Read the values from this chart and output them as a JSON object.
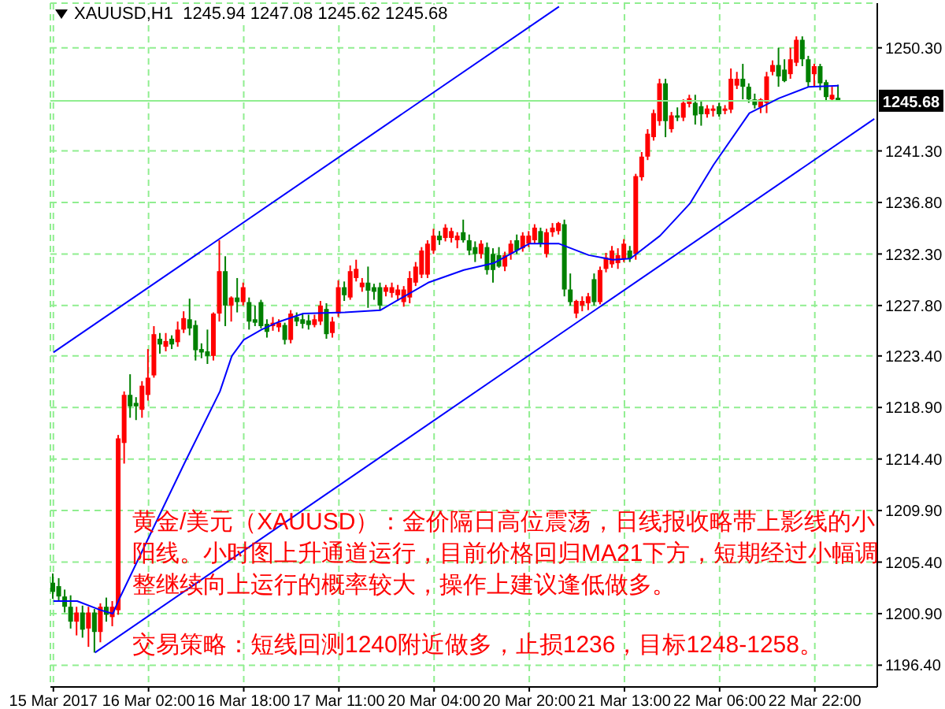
{
  "chart_data": {
    "type": "candlestick",
    "title": "XAUUSD,H1  1245.94 1247.08 1245.62 1245.68",
    "categories": [
      "15 Mar 2017",
      null,
      null,
      null,
      null,
      null,
      null,
      null,
      null,
      null,
      null,
      null,
      null,
      null,
      null,
      null,
      "16 Mar 02:00",
      null,
      null,
      null,
      null,
      null,
      null,
      null,
      null,
      null,
      null,
      null,
      null,
      null,
      null,
      null,
      "16 Mar 18:00",
      null,
      null,
      null,
      null,
      null,
      null,
      null,
      null,
      null,
      null,
      null,
      null,
      null,
      null,
      null,
      "17 Mar 11:00",
      null,
      null,
      null,
      null,
      null,
      null,
      null,
      null,
      null,
      null,
      null,
      null,
      null,
      null,
      null,
      "20 Mar 04:00",
      null,
      null,
      null,
      null,
      null,
      null,
      null,
      null,
      null,
      null,
      null,
      null,
      null,
      null,
      null,
      "20 Mar 20:00",
      null,
      null,
      null,
      null,
      null,
      null,
      null,
      null,
      null,
      null,
      null,
      null,
      null,
      null,
      null,
      "21 Mar 13:00",
      null,
      null,
      null,
      null,
      null,
      null,
      null,
      null,
      null,
      null,
      null,
      null,
      null,
      null,
      null,
      "22 Mar 06:00",
      null,
      null,
      null,
      null,
      null,
      null,
      null,
      null,
      null,
      null,
      null,
      null,
      null,
      null,
      null,
      "22 Mar 22:00",
      null,
      null,
      null,
      null,
      null,
      null,
      null,
      null,
      null,
      null
    ],
    "ohlc": [
      [
        1203.6,
        1204.4,
        1202.2,
        1202.8
      ],
      [
        1203.3,
        1204.0,
        1202.0,
        1202.4
      ],
      [
        1202.4,
        1203.0,
        1201.0,
        1201.5
      ],
      [
        1201.5,
        1202.5,
        1199.6,
        1200.2
      ],
      [
        1200.2,
        1201.5,
        1199.0,
        1201.0
      ],
      [
        1201.0,
        1201.6,
        1198.8,
        1199.5
      ],
      [
        1199.6,
        1201.5,
        1198.0,
        1201.0
      ],
      [
        1201.0,
        1201.3,
        1197.5,
        1199.3
      ],
      [
        1199.3,
        1201.8,
        1198.4,
        1201.5
      ],
      [
        1201.5,
        1202.3,
        1200.2,
        1200.8
      ],
      [
        1200.6,
        1202.0,
        1199.8,
        1201.5
      ],
      [
        1201.2,
        1216.5,
        1200.8,
        1216.2
      ],
      [
        1215.8,
        1220.3,
        1214.0,
        1220.0
      ],
      [
        1220.0,
        1221.8,
        1218.0,
        1219.0
      ],
      [
        1219.3,
        1219.8,
        1217.8,
        1219.0
      ],
      [
        1218.7,
        1221.2,
        1218.0,
        1220.8
      ],
      [
        1220.0,
        1224.0,
        1219.5,
        1221.5
      ],
      [
        1221.7,
        1226.0,
        1221.5,
        1225.3
      ],
      [
        1224.9,
        1225.4,
        1223.6,
        1224.4
      ],
      [
        1224.2,
        1225.4,
        1223.8,
        1224.7
      ],
      [
        1224.9,
        1225.2,
        1224.0,
        1224.4
      ],
      [
        1224.6,
        1226.4,
        1224.2,
        1225.7
      ],
      [
        1225.7,
        1227.3,
        1225.4,
        1226.7
      ],
      [
        1226.6,
        1228.4,
        1225.2,
        1225.8
      ],
      [
        1226.1,
        1226.5,
        1223.0,
        1223.9
      ],
      [
        1224.0,
        1224.5,
        1223.2,
        1223.7
      ],
      [
        1223.8,
        1225.7,
        1222.7,
        1223.4
      ],
      [
        1223.4,
        1227.2,
        1223.0,
        1227.1
      ],
      [
        1227.1,
        1233.5,
        1226.4,
        1230.8
      ],
      [
        1230.8,
        1232.1,
        1226.0,
        1227.8
      ],
      [
        1227.8,
        1228.6,
        1226.4,
        1228.5
      ],
      [
        1228.5,
        1230.2,
        1227.2,
        1228.1
      ],
      [
        1228.1,
        1229.8,
        1227.8,
        1229.4
      ],
      [
        1228.1,
        1228.5,
        1225.7,
        1226.4
      ],
      [
        1226.6,
        1227.8,
        1226.0,
        1226.3
      ],
      [
        1228.1,
        1228.3,
        1225.8,
        1226.0
      ],
      [
        1226.2,
        1226.6,
        1225.0,
        1225.5
      ],
      [
        1226.0,
        1226.8,
        1225.6,
        1226.3
      ],
      [
        1225.9,
        1226.6,
        1225.5,
        1226.3
      ],
      [
        1226.1,
        1226.3,
        1224.4,
        1224.8
      ],
      [
        1224.8,
        1227.4,
        1224.5,
        1227.1
      ],
      [
        1226.8,
        1227.2,
        1226.0,
        1226.4
      ],
      [
        1226.6,
        1227.1,
        1225.8,
        1226.2
      ],
      [
        1226.5,
        1227.0,
        1225.7,
        1226.1
      ],
      [
        1226.1,
        1227.0,
        1225.9,
        1226.6
      ],
      [
        1226.4,
        1228.2,
        1226.1,
        1227.8
      ],
      [
        1227.5,
        1228.0,
        1224.9,
        1225.3
      ],
      [
        1225.4,
        1226.8,
        1225.0,
        1226.4
      ],
      [
        1227.1,
        1230.0,
        1226.8,
        1229.4
      ],
      [
        1229.4,
        1229.9,
        1228.2,
        1228.7
      ],
      [
        1228.5,
        1231.3,
        1228.3,
        1230.8
      ],
      [
        1230.2,
        1231.8,
        1229.9,
        1231.0
      ],
      [
        1229.4,
        1230.2,
        1229.0,
        1229.8
      ],
      [
        1229.8,
        1231.2,
        1227.6,
        1229.1
      ],
      [
        1229.4,
        1229.7,
        1228.3,
        1229.0
      ],
      [
        1229.4,
        1229.8,
        1227.4,
        1227.8
      ],
      [
        1229.0,
        1229.6,
        1228.6,
        1229.4
      ],
      [
        1228.9,
        1229.8,
        1228.5,
        1229.4
      ],
      [
        1228.7,
        1229.6,
        1228.2,
        1229.2
      ],
      [
        1228.1,
        1229.5,
        1227.7,
        1229.2
      ],
      [
        1228.5,
        1230.8,
        1228.0,
        1230.2
      ],
      [
        1229.8,
        1231.6,
        1229.5,
        1231.2
      ],
      [
        1230.5,
        1232.9,
        1230.2,
        1232.6
      ],
      [
        1230.5,
        1233.5,
        1230.2,
        1233.2
      ],
      [
        1232.6,
        1234.5,
        1232.3,
        1233.9
      ],
      [
        1233.9,
        1234.3,
        1233.1,
        1233.5
      ],
      [
        1233.7,
        1234.9,
        1233.4,
        1234.6
      ],
      [
        1233.7,
        1234.6,
        1233.3,
        1234.3
      ],
      [
        1233.5,
        1234.2,
        1232.8,
        1233.9
      ],
      [
        1234.2,
        1235.3,
        1233.3,
        1233.5
      ],
      [
        1233.5,
        1234.0,
        1232.2,
        1232.6
      ],
      [
        1232.9,
        1233.4,
        1231.6,
        1232.3
      ],
      [
        1232.3,
        1233.5,
        1231.9,
        1233.2
      ],
      [
        1232.9,
        1233.3,
        1230.5,
        1230.9
      ],
      [
        1232.3,
        1232.8,
        1229.8,
        1230.9
      ],
      [
        1232.2,
        1232.9,
        1231.1,
        1231.2
      ],
      [
        1231.2,
        1232.5,
        1230.8,
        1232.2
      ],
      [
        1232.3,
        1233.5,
        1231.8,
        1233.2
      ],
      [
        1233.5,
        1234.0,
        1232.3,
        1232.6
      ],
      [
        1232.8,
        1234.2,
        1232.5,
        1233.9
      ],
      [
        1233.2,
        1234.3,
        1232.9,
        1233.9
      ],
      [
        1233.5,
        1234.9,
        1233.2,
        1234.6
      ],
      [
        1234.3,
        1234.6,
        1232.9,
        1233.2
      ],
      [
        1232.3,
        1234.5,
        1232.0,
        1234.2
      ],
      [
        1234.2,
        1235.0,
        1233.8,
        1234.6
      ],
      [
        1234.3,
        1235.1,
        1234.0,
        1235.0
      ],
      [
        1234.9,
        1235.3,
        1228.6,
        1229.2
      ],
      [
        1229.2,
        1230.6,
        1227.8,
        1228.1
      ],
      [
        1227.1,
        1228.3,
        1226.7,
        1228.2
      ],
      [
        1227.8,
        1228.6,
        1227.3,
        1228.2
      ],
      [
        1228.0,
        1228.9,
        1227.4,
        1228.6
      ],
      [
        1230.1,
        1230.6,
        1227.8,
        1228.1
      ],
      [
        1228.1,
        1231.2,
        1227.9,
        1230.9
      ],
      [
        1231.0,
        1232.4,
        1230.7,
        1232.0
      ],
      [
        1231.4,
        1233.0,
        1231.1,
        1232.6
      ],
      [
        1231.5,
        1232.8,
        1231.0,
        1232.2
      ],
      [
        1231.9,
        1233.6,
        1231.6,
        1233.2
      ],
      [
        1232.6,
        1233.0,
        1231.6,
        1231.9
      ],
      [
        1232.3,
        1239.3,
        1231.8,
        1239.1
      ],
      [
        1239.0,
        1241.2,
        1238.7,
        1240.8
      ],
      [
        1240.8,
        1243.2,
        1240.5,
        1242.8
      ],
      [
        1242.5,
        1244.9,
        1242.2,
        1244.6
      ],
      [
        1243.9,
        1247.6,
        1243.5,
        1247.2
      ],
      [
        1247.2,
        1247.6,
        1242.5,
        1243.9
      ],
      [
        1243.2,
        1244.7,
        1242.9,
        1244.4
      ],
      [
        1244.4,
        1245.1,
        1243.9,
        1244.2
      ],
      [
        1244.2,
        1245.8,
        1243.9,
        1245.5
      ],
      [
        1245.4,
        1246.2,
        1245.1,
        1245.9
      ],
      [
        1245.5,
        1246.2,
        1243.6,
        1244.4
      ],
      [
        1245.2,
        1245.7,
        1243.5,
        1244.5
      ],
      [
        1244.5,
        1245.3,
        1244.2,
        1245.0
      ],
      [
        1244.8,
        1245.3,
        1244.3,
        1245.0
      ],
      [
        1245.2,
        1245.5,
        1244.3,
        1244.5
      ],
      [
        1244.8,
        1245.3,
        1244.5,
        1245.0
      ],
      [
        1244.9,
        1248.5,
        1244.6,
        1247.6
      ],
      [
        1247.0,
        1248.2,
        1246.7,
        1247.6
      ],
      [
        1247.6,
        1248.9,
        1245.8,
        1246.9
      ],
      [
        1246.9,
        1247.2,
        1245.5,
        1245.8
      ],
      [
        1245.8,
        1246.3,
        1245.0,
        1245.3
      ],
      [
        1245.1,
        1245.9,
        1244.6,
        1245.8
      ],
      [
        1245.5,
        1248.2,
        1244.6,
        1247.8
      ],
      [
        1248.2,
        1249.2,
        1247.9,
        1248.8
      ],
      [
        1248.8,
        1250.3,
        1246.9,
        1247.8
      ],
      [
        1248.4,
        1249.3,
        1247.3,
        1247.4
      ],
      [
        1248.0,
        1250.3,
        1247.6,
        1249.3
      ],
      [
        1249.0,
        1251.3,
        1248.7,
        1251.0
      ],
      [
        1251.0,
        1251.3,
        1248.7,
        1249.3
      ],
      [
        1249.3,
        1249.6,
        1246.9,
        1247.3
      ],
      [
        1248.0,
        1248.9,
        1246.9,
        1248.7
      ],
      [
        1248.7,
        1248.9,
        1246.6,
        1247.2
      ],
      [
        1247.3,
        1247.5,
        1245.6,
        1246.0
      ],
      [
        1245.8,
        1246.9,
        1245.6,
        1246.2
      ],
      [
        1245.94,
        1247.08,
        1245.62,
        1245.68
      ],
      null,
      null,
      null,
      null,
      null,
      null
    ],
    "colors": [
      "#008000",
      "#008000",
      "#008000",
      "#008000",
      "#ff0000",
      "#008000",
      "#ff0000",
      "#008000",
      "#ff0000",
      "#008000",
      "#ff0000",
      "#ff0000",
      "#ff0000",
      "#008000",
      "#008000",
      "#ff0000",
      "#ff0000",
      "#ff0000",
      "#008000",
      "#ff0000",
      "#008000",
      "#ff0000",
      "#ff0000",
      "#008000",
      "#008000",
      "#008000",
      "#008000",
      "#ff0000",
      "#ff0000",
      "#008000",
      "#ff0000",
      "#008000",
      "#ff0000",
      "#008000",
      "#008000",
      "#008000",
      "#008000",
      "#ff0000",
      "#ff0000",
      "#008000",
      "#ff0000",
      "#008000",
      "#008000",
      "#008000",
      "#ff0000",
      "#ff0000",
      "#008000",
      "#ff0000",
      "#ff0000",
      "#008000",
      "#ff0000",
      "#ff0000",
      "#ff0000",
      "#008000",
      "#008000",
      "#008000",
      "#ff0000",
      "#ff0000",
      "#ff0000",
      "#ff0000",
      "#ff0000",
      "#ff0000",
      "#ff0000",
      "#ff0000",
      "#ff0000",
      "#008000",
      "#ff0000",
      "#ff0000",
      "#ff0000",
      "#008000",
      "#008000",
      "#008000",
      "#ff0000",
      "#008000",
      "#008000",
      "#008000",
      "#ff0000",
      "#ff0000",
      "#008000",
      "#ff0000",
      "#ff0000",
      "#ff0000",
      "#008000",
      "#ff0000",
      "#ff0000",
      "#ff0000",
      "#008000",
      "#008000",
      "#ff0000",
      "#ff0000",
      "#ff0000",
      "#008000",
      "#ff0000",
      "#ff0000",
      "#ff0000",
      "#ff0000",
      "#ff0000",
      "#008000",
      "#ff0000",
      "#ff0000",
      "#ff0000",
      "#ff0000",
      "#ff0000",
      "#008000",
      "#ff0000",
      "#008000",
      "#ff0000",
      "#ff0000",
      "#008000",
      "#008000",
      "#ff0000",
      "#ff0000",
      "#008000",
      "#ff0000",
      "#ff0000",
      "#ff0000",
      "#008000",
      "#008000",
      "#008000",
      "#ff0000",
      "#ff0000",
      "#ff0000",
      "#008000",
      "#008000",
      "#ff0000",
      "#ff0000",
      "#008000",
      "#008000",
      "#ff0000",
      "#008000",
      "#008000",
      "#ff0000",
      "#008000",
      null,
      null,
      null,
      null,
      null,
      null
    ],
    "series": [
      {
        "type": "line",
        "color": "#0000ff",
        "values": [
          1202.0,
          null,
          null,
          null,
          1202.0,
          null,
          null,
          null,
          1201.2,
          null,
          1200.9,
          1202.1,
          null,
          null,
          null,
          null,
          null,
          1208.6,
          null,
          null,
          null,
          null,
          1214.0,
          null,
          null,
          null,
          null,
          null,
          1220.3,
          null,
          1223.4,
          null,
          1224.8,
          null,
          null,
          1225.7,
          null,
          null,
          1226.4,
          null,
          null,
          null,
          1227.1,
          null,
          null,
          null,
          null,
          null,
          null,
          1227.2,
          null,
          null,
          null,
          null,
          null,
          1227.4,
          null,
          null,
          null,
          null,
          null,
          null,
          null,
          1229.8,
          null,
          null,
          null,
          null,
          null,
          1230.9,
          null,
          null,
          null,
          null,
          1231.5,
          null,
          null,
          null,
          null,
          null,
          1233.2,
          null,
          null,
          null,
          null,
          1233.2,
          null,
          null,
          null,
          null,
          1232.2,
          null,
          null,
          null,
          1231.8,
          null,
          null,
          1231.9,
          null,
          null,
          null,
          null,
          1233.9,
          null,
          null,
          null,
          null,
          1236.7,
          null,
          null,
          null,
          1240.1,
          null,
          null,
          null,
          null,
          null,
          1244.6,
          null,
          null,
          null,
          null,
          1245.9,
          null,
          null,
          null,
          null,
          1246.9,
          null,
          null,
          null,
          null,
          1247.0,
          null,
          null,
          null,
          null,
          null,
          null
        ]
      },
      {
        "type": "line",
        "color": "#0000ff",
        "values": [
          1223.7,
          null,
          null,
          null,
          null,
          null,
          null,
          null,
          null,
          null,
          null,
          null,
          null,
          null,
          null,
          null,
          null,
          null,
          null,
          null,
          null,
          null,
          null,
          null,
          null,
          null,
          null,
          null,
          null,
          null,
          null,
          null,
          null,
          null,
          null,
          null,
          null,
          null,
          null,
          null,
          null,
          null,
          null,
          null,
          null,
          null,
          null,
          null,
          null,
          null,
          null,
          null,
          null,
          null,
          null,
          null,
          null,
          null,
          null,
          null,
          null,
          null,
          null,
          null,
          null,
          null,
          null,
          null,
          null,
          null,
          null,
          null,
          null,
          null,
          null,
          null,
          null,
          null,
          null,
          null,
          null,
          null,
          null,
          null,
          null,
          1253.9,
          null,
          null,
          null,
          null,
          null,
          null,
          null,
          null,
          null,
          null,
          null,
          null,
          null,
          null,
          null,
          null,
          null,
          null,
          null,
          null,
          null,
          null,
          null,
          null,
          null,
          null,
          null,
          null,
          null,
          null,
          null,
          null,
          null,
          null,
          null,
          null,
          null,
          null,
          null,
          null,
          null,
          null,
          null,
          null,
          null,
          null,
          null,
          null,
          null,
          null,
          null,
          null,
          null
        ]
      },
      {
        "type": "line",
        "color": "#0000ff",
        "values": [
          null,
          null,
          null,
          null,
          null,
          null,
          null,
          1197.5,
          null,
          null,
          null,
          null,
          null,
          null,
          null,
          null,
          null,
          null,
          null,
          null,
          null,
          null,
          null,
          null,
          null,
          null,
          null,
          null,
          null,
          null,
          null,
          null,
          null,
          null,
          null,
          null,
          null,
          null,
          null,
          null,
          null,
          null,
          null,
          null,
          null,
          null,
          null,
          null,
          null,
          null,
          null,
          null,
          null,
          null,
          null,
          null,
          null,
          null,
          null,
          null,
          null,
          null,
          null,
          null,
          null,
          null,
          null,
          null,
          null,
          null,
          null,
          null,
          null,
          null,
          null,
          null,
          null,
          null,
          null,
          null,
          null,
          null,
          null,
          null,
          null,
          null,
          null,
          null,
          null,
          null,
          null,
          null,
          null,
          null,
          null,
          null,
          null,
          null,
          null,
          null,
          null,
          null,
          null,
          null,
          null,
          null,
          null,
          null,
          null,
          null,
          null,
          null,
          null,
          null,
          null,
          null,
          null,
          null,
          null,
          null,
          null,
          null,
          null,
          null,
          null,
          null,
          null,
          null,
          null,
          null,
          null,
          null,
          null,
          null,
          null,
          null,
          null,
          null,
          1244.1
        ]
      }
    ],
    "ylim": [
      1194.5,
      1254.2
    ],
    "yticks": [
      {
        "value": 1196.4,
        "label": "1196.40"
      },
      {
        "value": 1200.9,
        "label": "1200.90"
      },
      {
        "value": 1205.4,
        "label": "1205.40"
      },
      {
        "value": 1209.9,
        "label": "1209.90"
      },
      {
        "value": 1214.4,
        "label": "1214.40"
      },
      {
        "value": 1218.9,
        "label": "1218.90"
      },
      {
        "value": 1223.4,
        "label": "1223.40"
      },
      {
        "value": 1227.8,
        "label": "1227.80"
      },
      {
        "value": 1232.3,
        "label": "1232.30"
      },
      {
        "value": 1236.8,
        "label": "1236.80"
      },
      {
        "value": 1241.3,
        "label": "1241.30"
      },
      {
        "value": 1250.3,
        "label": "1250.30"
      }
    ],
    "grid": true,
    "ref_lines": [
      {
        "axis": "y",
        "value": 1245.68,
        "label": "1245.68",
        "color": "#90ee90"
      }
    ],
    "annotations": [
      "黄金/美元（XAUUSD）：金价隔日高位震荡，日线报收略带上影线的小阳线。小时图上升通道运行，目前价格回归MA21下方，短期经过小幅调整继续向上运行的概率较大，操作上建议逢低做多。",
      "交易策略：短线回测1240附近做多，止损1236，目标1248-1258。"
    ]
  }
}
